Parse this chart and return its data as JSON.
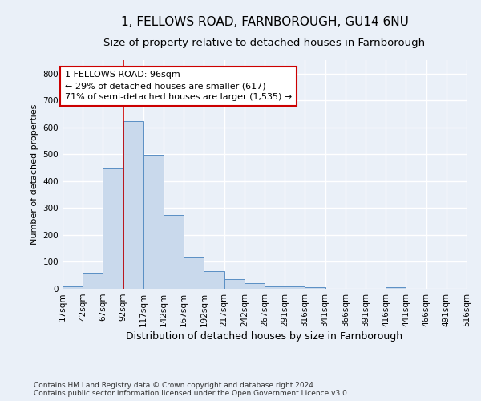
{
  "title": "1, FELLOWS ROAD, FARNBOROUGH, GU14 6NU",
  "subtitle": "Size of property relative to detached houses in Farnborough",
  "xlabel": "Distribution of detached houses by size in Farnborough",
  "ylabel": "Number of detached properties",
  "bar_values": [
    10,
    58,
    447,
    623,
    498,
    275,
    115,
    65,
    35,
    20,
    10,
    8,
    7,
    0,
    0,
    0,
    5,
    0,
    0,
    0
  ],
  "bin_labels": [
    "17sqm",
    "42sqm",
    "67sqm",
    "92sqm",
    "117sqm",
    "142sqm",
    "167sqm",
    "192sqm",
    "217sqm",
    "242sqm",
    "267sqm",
    "291sqm",
    "316sqm",
    "341sqm",
    "366sqm",
    "391sqm",
    "416sqm",
    "441sqm",
    "466sqm",
    "491sqm",
    "516sqm"
  ],
  "bar_color": "#c9d9ec",
  "bar_edge_color": "#5a8fc4",
  "vline_x_bin": 3,
  "vline_color": "#cc0000",
  "annotation_text": "1 FELLOWS ROAD: 96sqm\n← 29% of detached houses are smaller (617)\n71% of semi-detached houses are larger (1,535) →",
  "annotation_box_color": "#ffffff",
  "annotation_box_edge": "#cc0000",
  "ylim": [
    0,
    850
  ],
  "yticks": [
    0,
    100,
    200,
    300,
    400,
    500,
    600,
    700,
    800
  ],
  "footnote": "Contains HM Land Registry data © Crown copyright and database right 2024.\nContains public sector information licensed under the Open Government Licence v3.0.",
  "bg_color": "#eaf0f8",
  "plot_bg_color": "#eaf0f8",
  "grid_color": "#ffffff",
  "title_fontsize": 11,
  "subtitle_fontsize": 9.5,
  "xlabel_fontsize": 9,
  "ylabel_fontsize": 8,
  "tick_fontsize": 7.5,
  "annotation_fontsize": 8,
  "footnote_fontsize": 6.5
}
